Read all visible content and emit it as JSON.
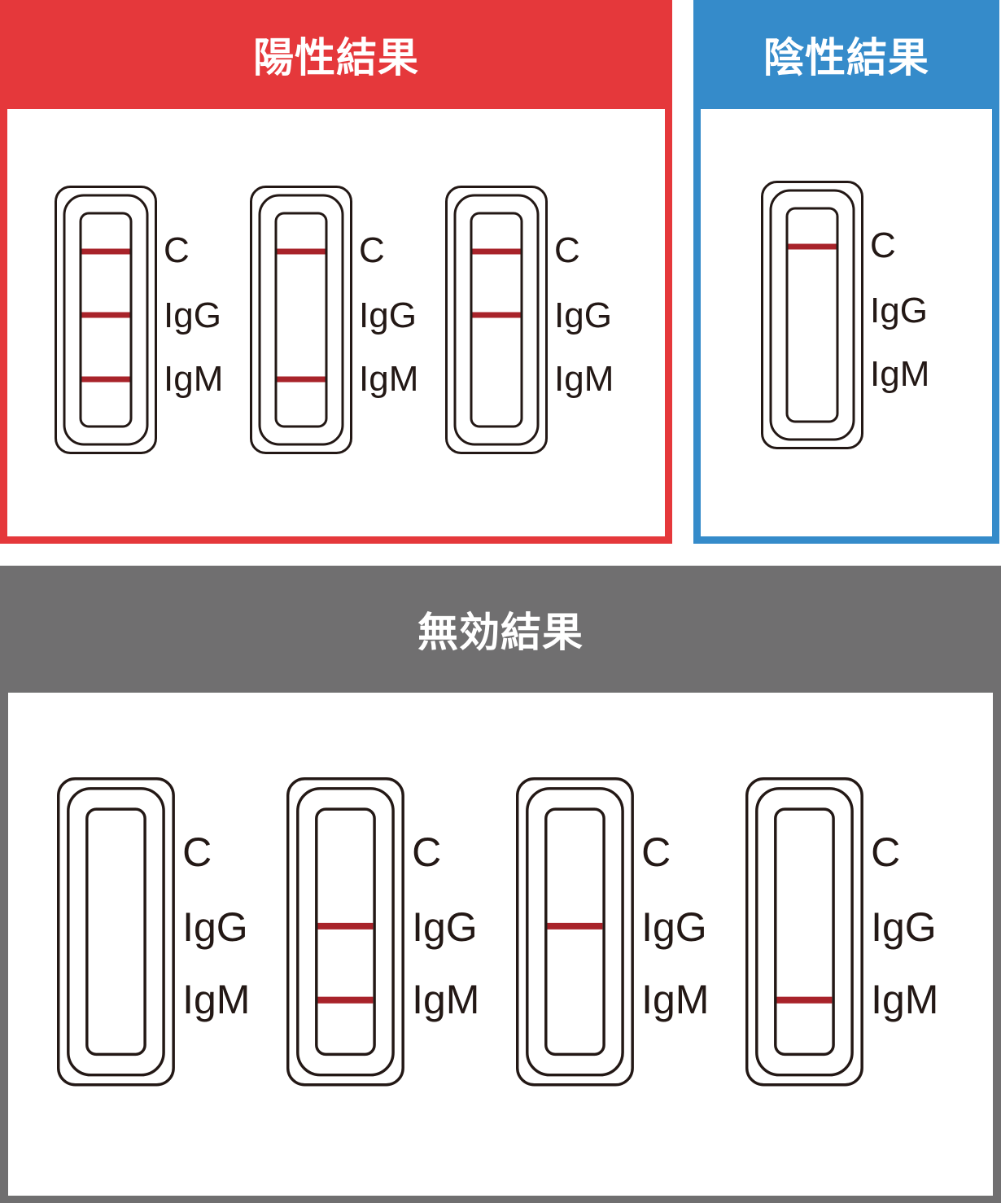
{
  "colors": {
    "positive_header": "#e5383b",
    "negative_header": "#358bca",
    "invalid_header": "#706f70",
    "test_line": "#a8232a",
    "outline": "#231815"
  },
  "panels": {
    "positive": {
      "title": "陽性結果",
      "strips": [
        {
          "labels": [
            "C",
            "IgG",
            "IgM"
          ],
          "lines": {
            "C": true,
            "IgG": true,
            "IgM": true
          }
        },
        {
          "labels": [
            "C",
            "IgG",
            "IgM"
          ],
          "lines": {
            "C": true,
            "IgG": false,
            "IgM": true
          }
        },
        {
          "labels": [
            "C",
            "IgG",
            "IgM"
          ],
          "lines": {
            "C": true,
            "IgG": true,
            "IgM": false
          }
        }
      ]
    },
    "negative": {
      "title": "陰性結果",
      "strips": [
        {
          "labels": [
            "C",
            "IgG",
            "IgM"
          ],
          "lines": {
            "C": true,
            "IgG": false,
            "IgM": false
          }
        }
      ]
    },
    "invalid": {
      "title": "無効結果",
      "strips": [
        {
          "labels": [
            "C",
            "IgG",
            "IgM"
          ],
          "lines": {
            "C": false,
            "IgG": false,
            "IgM": false
          }
        },
        {
          "labels": [
            "C",
            "IgG",
            "IgM"
          ],
          "lines": {
            "C": false,
            "IgG": true,
            "IgM": true
          }
        },
        {
          "labels": [
            "C",
            "IgG",
            "IgM"
          ],
          "lines": {
            "C": false,
            "IgG": true,
            "IgM": false
          }
        },
        {
          "labels": [
            "C",
            "IgG",
            "IgM"
          ],
          "lines": {
            "C": false,
            "IgG": false,
            "IgM": true
          }
        }
      ]
    }
  }
}
